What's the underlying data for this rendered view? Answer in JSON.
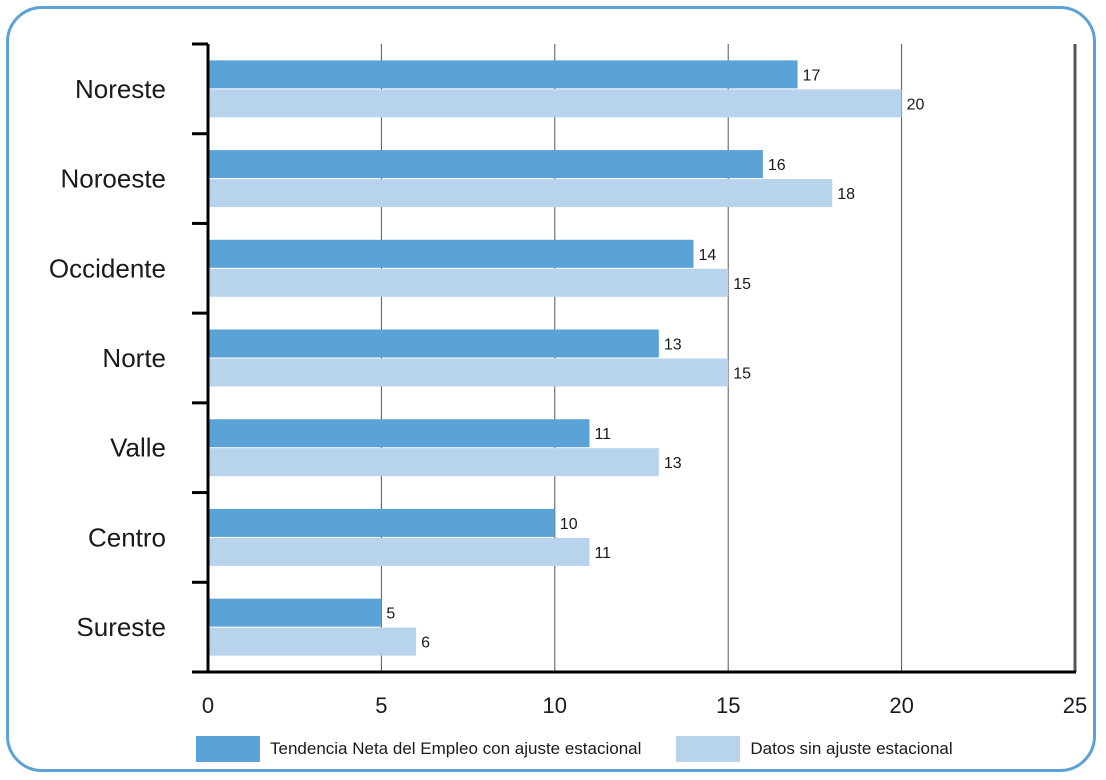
{
  "chart_data": {
    "type": "bar",
    "orientation": "horizontal",
    "categories": [
      "Noreste",
      "Noroeste",
      "Occidente",
      "Norte",
      "Valle",
      "Centro",
      "Sureste"
    ],
    "series": [
      {
        "name": "Tendencia Neta del Empleo con ajuste estacional",
        "color": "#5ba3d6",
        "values": [
          17,
          16,
          14,
          13,
          11,
          10,
          5
        ]
      },
      {
        "name": "Datos sin ajuste estacional",
        "color": "#b8d3ec",
        "values": [
          20,
          18,
          15,
          15,
          13,
          11,
          6
        ]
      }
    ],
    "xticks": [
      "0",
      "5",
      "10",
      "15",
      "20",
      "25"
    ],
    "xlim": [
      0,
      25
    ],
    "grid": "vertical",
    "legend_position": "bottom",
    "title": "",
    "xlabel": "",
    "ylabel": ""
  }
}
